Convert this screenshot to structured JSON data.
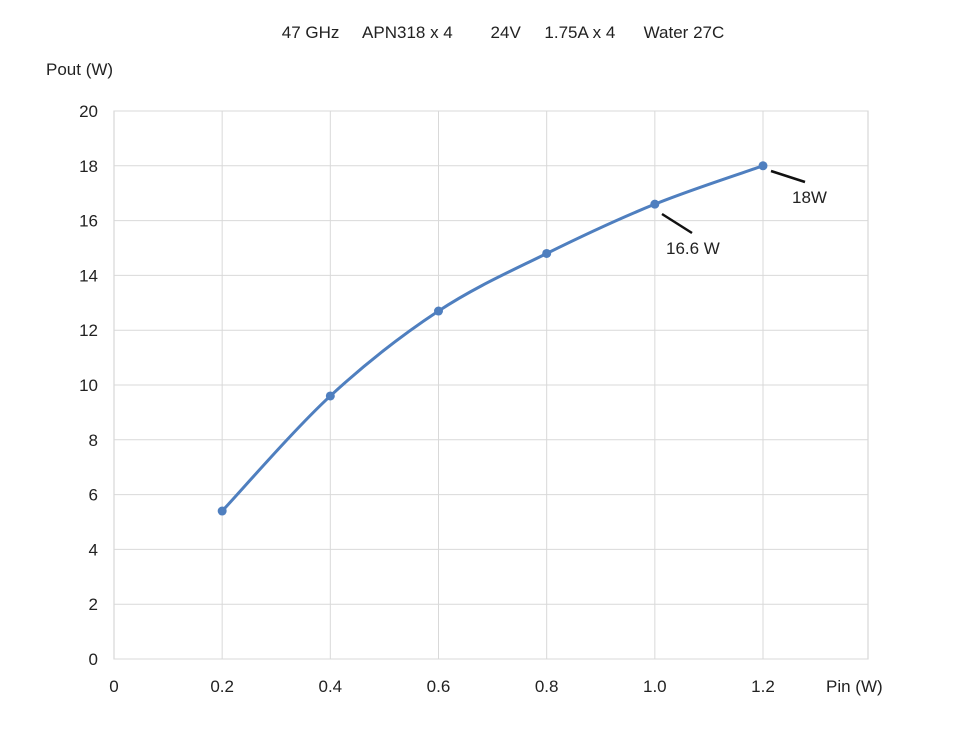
{
  "chart_data": {
    "type": "line",
    "title": "47 GHz     APN318 x 4        24V     1.75A x 4      Water 27C",
    "xlabel": "Pin (W)",
    "ylabel": "Pout (W)",
    "xlim": [
      0,
      1.4
    ],
    "ylim": [
      0,
      20
    ],
    "x_ticks": [
      "0",
      "0.2",
      "0.4",
      "0.6",
      "0.8",
      "1.0",
      "1.2"
    ],
    "y_ticks": [
      "0",
      "2",
      "4",
      "6",
      "8",
      "10",
      "12",
      "14",
      "16",
      "18",
      "20"
    ],
    "grid": true,
    "series": [
      {
        "x": [
          0.2,
          0.4,
          0.6,
          0.8,
          1.0,
          1.2
        ],
        "y": [
          5.4,
          9.6,
          12.7,
          14.8,
          16.6,
          18.0
        ],
        "color": "#4f7fbf",
        "smooth": true
      }
    ],
    "annotations": [
      {
        "text": "16.6 W",
        "point_index": 4
      },
      {
        "text": "18W",
        "point_index": 5
      }
    ]
  }
}
